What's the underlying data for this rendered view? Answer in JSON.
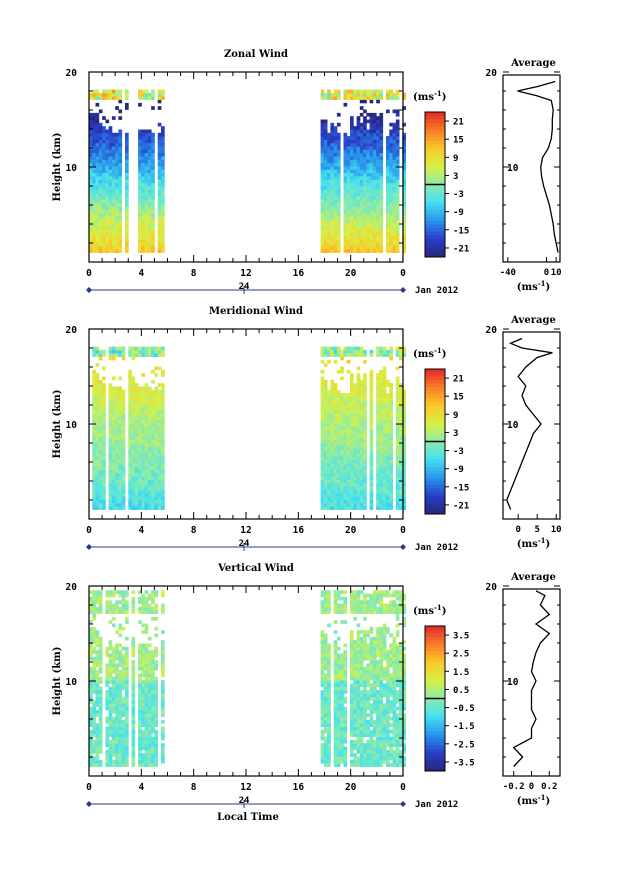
{
  "chart_data": [
    {
      "type": "heatmap",
      "title": "Zonal Wind",
      "ylabel": "Height (km)",
      "ylim": [
        0,
        20
      ],
      "yticks": [
        "20",
        "10"
      ],
      "xticks": [
        "0",
        "4",
        "8",
        "12",
        "16",
        "20",
        "0"
      ],
      "xlim": [
        0,
        24
      ],
      "date_marker": "24",
      "date_label": "Jan 2012",
      "colorbar": {
        "unit": "(ms",
        "unit_exp": "-1",
        "unit_close": ")",
        "ticks": [
          "21",
          "15",
          "9",
          "3",
          "-3",
          "-9",
          "-15",
          "-21"
        ],
        "range": [
          -24,
          24
        ]
      },
      "observation_windows": [
        [
          0,
          5.6
        ],
        [
          17.7,
          24
        ]
      ],
      "profile": {
        "title": "Average",
        "xlabel": "(ms",
        "xlabel_exp": "-1",
        "xlabel_close": ")",
        "xticks": [
          "-40",
          "0",
          "10"
        ],
        "xlim": [
          -45,
          14
        ],
        "yticks": [
          "20",
          "10"
        ],
        "heights": [
          1,
          2,
          3,
          4,
          5,
          6,
          7,
          8,
          9,
          10,
          11,
          12,
          13,
          14,
          15,
          16,
          17,
          17.5,
          18,
          18.5,
          19
        ],
        "values": [
          12,
          10,
          8,
          7,
          5,
          3,
          0,
          -3,
          -5,
          -6,
          -4,
          2,
          5,
          6,
          6,
          7,
          5,
          -10,
          -30,
          -8,
          9
        ]
      }
    },
    {
      "type": "heatmap",
      "title": "Meridional Wind",
      "ylabel": "Height (km)",
      "ylim": [
        0,
        20
      ],
      "yticks": [
        "20",
        "10"
      ],
      "xticks": [
        "0",
        "4",
        "8",
        "12",
        "16",
        "20",
        "0"
      ],
      "xlim": [
        0,
        24
      ],
      "date_marker": "24",
      "date_label": "Jan 2012",
      "colorbar": {
        "unit": "(ms",
        "unit_exp": "-1",
        "unit_close": ")",
        "ticks": [
          "21",
          "15",
          "9",
          "3",
          "-3",
          "-9",
          "-15",
          "-21"
        ],
        "range": [
          -24,
          24
        ]
      },
      "observation_windows": [
        [
          0,
          5.6
        ],
        [
          17.7,
          24
        ]
      ],
      "profile": {
        "title": "Average",
        "xlabel": "(ms",
        "xlabel_exp": "-1",
        "xlabel_close": ")",
        "xticks": [
          "0",
          "5",
          "10"
        ],
        "xlim": [
          -4,
          11
        ],
        "yticks": [
          "20",
          "10"
        ],
        "heights": [
          1,
          2,
          3,
          4,
          5,
          6,
          7,
          8,
          9,
          10,
          11,
          12,
          13,
          14,
          15,
          16,
          17,
          17.5,
          18,
          18.5,
          19
        ],
        "values": [
          -2,
          -3,
          -2,
          -1,
          0,
          1,
          2,
          3,
          4,
          6,
          4,
          2,
          1,
          2,
          0,
          2,
          5,
          9,
          1,
          -2,
          1
        ]
      }
    },
    {
      "type": "heatmap",
      "title": "Vertical Wind",
      "ylabel": "Height (km)",
      "ylim": [
        0,
        20
      ],
      "yticks": [
        "20",
        "10"
      ],
      "xticks": [
        "0",
        "4",
        "8",
        "12",
        "16",
        "20",
        "0"
      ],
      "xlim": [
        0,
        24
      ],
      "date_marker": "24",
      "date_label": "Jan 2012",
      "xlabel": "Local Time",
      "colorbar": {
        "unit": "(ms",
        "unit_exp": "-1",
        "unit_close": ")",
        "ticks": [
          "3.5",
          "2.5",
          "1.5",
          "0.5",
          "-0.5",
          "-1.5",
          "-2.5",
          "-3.5"
        ],
        "range": [
          -4,
          4
        ]
      },
      "observation_windows": [
        [
          0,
          5.6
        ],
        [
          17.7,
          24
        ]
      ],
      "profile": {
        "title": "Average",
        "xlabel": "(ms",
        "xlabel_exp": "-1",
        "xlabel_close": ")",
        "xticks": [
          "-0.2",
          "0",
          "0.2"
        ],
        "xlim": [
          -0.32,
          0.32
        ],
        "yticks": [
          "20",
          "10"
        ],
        "heights": [
          1,
          2,
          3,
          4,
          5,
          6,
          7,
          8,
          9,
          10,
          11,
          12,
          13,
          14,
          15,
          16,
          17,
          18,
          19,
          19.5
        ],
        "values": [
          -0.2,
          -0.1,
          -0.2,
          0,
          0,
          0.05,
          0,
          0,
          0,
          0.05,
          0,
          0.02,
          0.05,
          0.1,
          0.2,
          0.05,
          0.2,
          0.1,
          0.15,
          0.05
        ]
      }
    }
  ]
}
